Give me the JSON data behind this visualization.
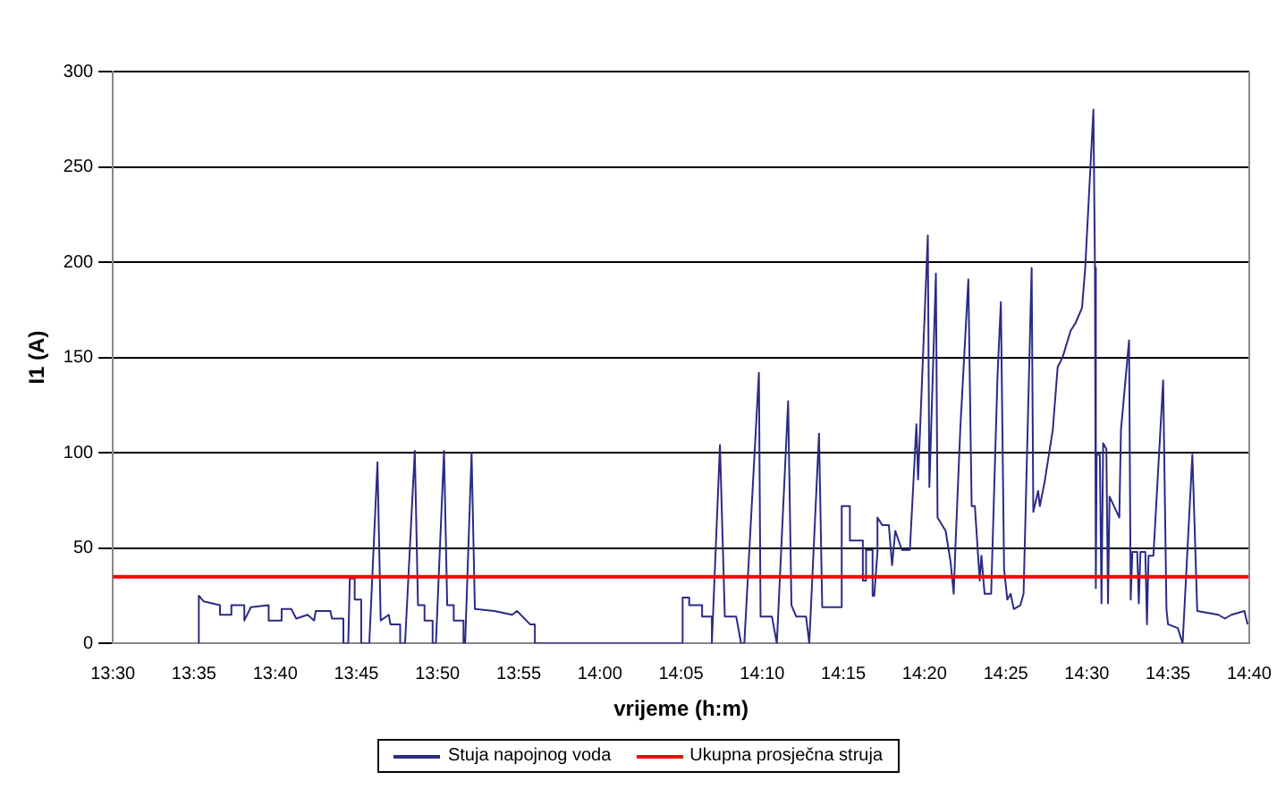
{
  "chart_data": {
    "type": "line",
    "xlabel": "vrijeme (h:m)",
    "ylabel": "I1 (A)",
    "xlim": [
      13.5,
      14.6667
    ],
    "xticks": [
      {
        "value": 13.5,
        "label": "13:30"
      },
      {
        "value": 13.5833,
        "label": "13:35"
      },
      {
        "value": 13.6667,
        "label": "13:40"
      },
      {
        "value": 13.75,
        "label": "13:45"
      },
      {
        "value": 13.8333,
        "label": "13:50"
      },
      {
        "value": 13.9167,
        "label": "13:55"
      },
      {
        "value": 14,
        "label": "14:00"
      },
      {
        "value": 14.0833,
        "label": "14:05"
      },
      {
        "value": 14.1667,
        "label": "14:10"
      },
      {
        "value": 14.25,
        "label": "14:15"
      },
      {
        "value": 14.3333,
        "label": "14:20"
      },
      {
        "value": 14.4167,
        "label": "14:25"
      },
      {
        "value": 14.5,
        "label": "14:30"
      },
      {
        "value": 14.5833,
        "label": "14:35"
      },
      {
        "value": 14.6667,
        "label": "14:40"
      }
    ],
    "ylim": [
      0,
      300
    ],
    "yticks": [
      0,
      50,
      100,
      150,
      200,
      250,
      300
    ],
    "grid": "y",
    "legend": "bottom",
    "marker": "none",
    "line_style": "solid",
    "series": [
      {
        "name": "Stuja napojnog voda",
        "color": "#2b2b85",
        "x": [
          13.5883,
          13.5883,
          13.5933,
          13.61,
          13.61,
          13.6217,
          13.6217,
          13.635,
          13.635,
          13.6417,
          13.66,
          13.66,
          13.6733,
          13.6733,
          13.6833,
          13.6883,
          13.7,
          13.7067,
          13.7083,
          13.7233,
          13.725,
          13.7367,
          13.7367,
          13.7417,
          13.7433,
          13.7483,
          13.7483,
          13.755,
          13.755,
          13.7633,
          13.7717,
          13.775,
          13.7833,
          13.785,
          13.795,
          13.795,
          13.8,
          13.81,
          13.8133,
          13.82,
          13.82,
          13.8283,
          13.8283,
          13.8317,
          13.84,
          13.8433,
          13.85,
          13.85,
          13.86,
          13.86,
          13.8617,
          13.8683,
          13.8717,
          13.8917,
          13.91,
          13.915,
          13.9283,
          13.9333,
          13.9333,
          14.085,
          14.085,
          14.0917,
          14.0917,
          14.105,
          14.105,
          14.115,
          14.115,
          14.1233,
          14.1283,
          14.14,
          14.145,
          14.1483,
          14.1633,
          14.165,
          14.1767,
          14.1817,
          14.1933,
          14.1967,
          14.2017,
          14.2117,
          14.215,
          14.225,
          14.2283,
          14.2483,
          14.2483,
          14.2567,
          14.2567,
          14.27,
          14.27,
          14.2733,
          14.2733,
          14.28,
          14.28,
          14.2817,
          14.285,
          14.285,
          14.29,
          14.2967,
          14.3,
          14.3033,
          14.31,
          14.3183,
          14.325,
          14.3267,
          14.3367,
          14.3383,
          14.345,
          14.3467,
          14.355,
          14.36,
          14.3633,
          14.365,
          14.37,
          14.3783,
          14.3817,
          14.385,
          14.3883,
          14.39,
          14.3917,
          14.395,
          14.4017,
          14.4083,
          14.4117,
          14.415,
          14.4183,
          14.4217,
          14.425,
          14.4317,
          14.435,
          14.4433,
          14.445,
          14.45,
          14.4517,
          14.4567,
          14.465,
          14.47,
          14.475,
          14.4833,
          14.4883,
          14.495,
          14.4983,
          14.5067,
          14.5083,
          14.5092,
          14.51,
          14.5133,
          14.515,
          14.5167,
          14.52,
          14.5217,
          14.5233,
          14.5333,
          14.535,
          14.5433,
          14.545,
          14.5467,
          14.5517,
          14.5533,
          14.555,
          14.56,
          14.5617,
          14.5633,
          14.5683,
          14.5783,
          14.5817,
          14.5833,
          14.5933,
          14.5983,
          14.6083,
          14.6133,
          14.635,
          14.6417,
          14.6483,
          14.6617,
          14.665
        ],
        "values": [
          0,
          25,
          22,
          20,
          15,
          15,
          20,
          20,
          12,
          19,
          20,
          12,
          12,
          18,
          18,
          13,
          15,
          12,
          17,
          17,
          13,
          13,
          0,
          0,
          34,
          34,
          23,
          23,
          0,
          0,
          95,
          12,
          15,
          10,
          10,
          0,
          0,
          101,
          20,
          20,
          12,
          12,
          0,
          0,
          101,
          20,
          20,
          12,
          12,
          0,
          0,
          100,
          18,
          17,
          15,
          17,
          10,
          10,
          0,
          0,
          24,
          24,
          20,
          20,
          14,
          14,
          0,
          104,
          14,
          14,
          0,
          0,
          142,
          14,
          14,
          0,
          127,
          20,
          14,
          14,
          0,
          110,
          19,
          19,
          72,
          72,
          54,
          54,
          33,
          33,
          49,
          49,
          25,
          25,
          48,
          66,
          62,
          62,
          41,
          59,
          49,
          49,
          115,
          86,
          214,
          82,
          194,
          66,
          59,
          43,
          26,
          50,
          112,
          191,
          72,
          72,
          46,
          33,
          46,
          26,
          26,
          141,
          179,
          39,
          23,
          26,
          18,
          20,
          26,
          197,
          69,
          80,
          72,
          85,
          112,
          145,
          150,
          164,
          168,
          176,
          197,
          280,
          197,
          29,
          99,
          99,
          21,
          105,
          102,
          21,
          77,
          66,
          112,
          159,
          23,
          48,
          48,
          21,
          48,
          48,
          10,
          46,
          46,
          138,
          18,
          10,
          8,
          0,
          99,
          17,
          15,
          13,
          15,
          17,
          10
        ]
      }
    ],
    "ref_lines": [
      {
        "axis": "y",
        "value": 35,
        "label": "Ukupna prosječna struja",
        "color": "#ff0000"
      }
    ]
  }
}
